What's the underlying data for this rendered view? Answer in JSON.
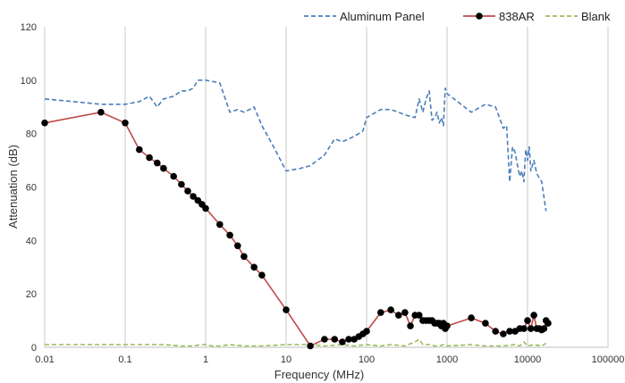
{
  "chart_data": {
    "type": "line",
    "xlabel": "Frequency (MHz)",
    "ylabel": "Attenuation (dB)",
    "x_scale": "log",
    "xlim": [
      0.01,
      100000
    ],
    "ylim": [
      0,
      120
    ],
    "x_ticks": [
      "0.01",
      "0.1",
      "1",
      "10",
      "100",
      "1000",
      "10000",
      "100000"
    ],
    "y_ticks": [
      "0",
      "20",
      "40",
      "60",
      "80",
      "100",
      "120"
    ],
    "grid": "vertical",
    "legend_position": "top-right",
    "series": [
      {
        "name": "Aluminum Panel",
        "color": "#4a7ebb",
        "style": "dashed",
        "x": [
          0.01,
          0.05,
          0.1,
          0.15,
          0.2,
          0.25,
          0.3,
          0.4,
          0.5,
          0.6,
          0.7,
          0.8,
          0.9,
          1,
          1.5,
          2,
          2.5,
          3,
          3.5,
          4,
          5,
          7,
          10,
          15,
          20,
          30,
          40,
          50,
          60,
          70,
          80,
          90,
          100,
          150,
          200,
          250,
          300,
          400,
          450,
          500,
          550,
          600,
          650,
          700,
          750,
          800,
          850,
          900,
          950,
          1000,
          2000,
          3000,
          4000,
          5000,
          5500,
          6000,
          6500,
          7000,
          7500,
          8000,
          8500,
          9000,
          9500,
          10000,
          10500,
          11000,
          12000,
          13000,
          15000,
          17000
        ],
        "y": [
          93,
          91,
          91,
          92,
          94,
          90,
          93,
          94,
          96,
          96,
          97,
          100,
          100,
          100,
          99,
          88,
          89,
          88,
          89,
          90,
          83,
          75,
          66,
          67,
          68,
          72,
          78,
          77,
          78,
          79,
          80,
          81,
          86,
          89,
          89,
          88,
          87,
          86,
          93,
          88,
          93,
          96,
          85,
          86,
          88,
          84,
          86,
          83,
          97,
          95,
          88,
          91,
          90,
          82,
          83,
          62,
          75,
          73,
          68,
          64,
          66,
          62,
          74,
          70,
          75,
          66,
          70,
          65,
          62,
          51
        ]
      },
      {
        "name": "838AR",
        "color": "#be4b48",
        "style": "solid-markers",
        "x": [
          0.01,
          0.05,
          0.1,
          0.15,
          0.2,
          0.25,
          0.3,
          0.4,
          0.5,
          0.6,
          0.7,
          0.8,
          0.9,
          1,
          1.5,
          2,
          2.5,
          3,
          4,
          5,
          10,
          20,
          30,
          40,
          50,
          60,
          70,
          80,
          90,
          100,
          150,
          200,
          250,
          300,
          350,
          400,
          450,
          500,
          550,
          600,
          650,
          700,
          750,
          800,
          850,
          900,
          950,
          1000,
          2000,
          3000,
          4000,
          5000,
          6000,
          7000,
          8000,
          9000,
          10000,
          11000,
          12000,
          13000,
          14000,
          15000,
          16000,
          17000,
          18000
        ],
        "y": [
          84,
          88,
          84,
          74,
          71,
          69,
          67,
          64,
          61,
          58.5,
          56.5,
          55,
          53.5,
          52,
          46,
          42,
          38,
          34,
          30,
          27,
          14,
          0.5,
          3,
          3,
          2,
          3,
          3,
          4,
          5,
          6,
          13,
          14,
          12,
          13,
          8,
          12,
          12,
          10,
          10,
          10,
          10,
          9,
          9,
          9,
          8,
          9,
          7,
          8,
          11,
          9,
          6,
          5,
          6,
          6,
          7,
          7,
          10,
          7,
          12,
          7,
          7,
          6.5,
          7,
          10,
          9
        ]
      },
      {
        "name": "Blank",
        "color": "#9bbb59",
        "style": "dashed",
        "x": [
          0.01,
          0.05,
          0.1,
          0.2,
          0.3,
          0.5,
          0.7,
          0.9,
          1,
          1.2,
          1.5,
          2,
          3,
          5,
          10,
          20,
          30,
          50,
          70,
          100,
          150,
          200,
          300,
          400,
          450,
          500,
          600,
          700,
          800,
          900,
          1000,
          2000,
          3000,
          5000,
          7000,
          8000,
          9000,
          10000,
          12000,
          15000,
          17000
        ],
        "y": [
          1,
          1,
          1,
          1,
          1,
          0.5,
          0.5,
          1,
          1,
          0.5,
          0.5,
          1,
          0.5,
          0.5,
          1,
          1,
          0.5,
          1,
          0.5,
          1,
          0.5,
          1,
          0.5,
          2,
          3,
          1,
          1,
          0.5,
          0.5,
          1,
          0.5,
          1,
          0.5,
          0.5,
          1,
          0.5,
          2,
          0.5,
          1,
          0.5,
          1.5
        ]
      }
    ]
  }
}
